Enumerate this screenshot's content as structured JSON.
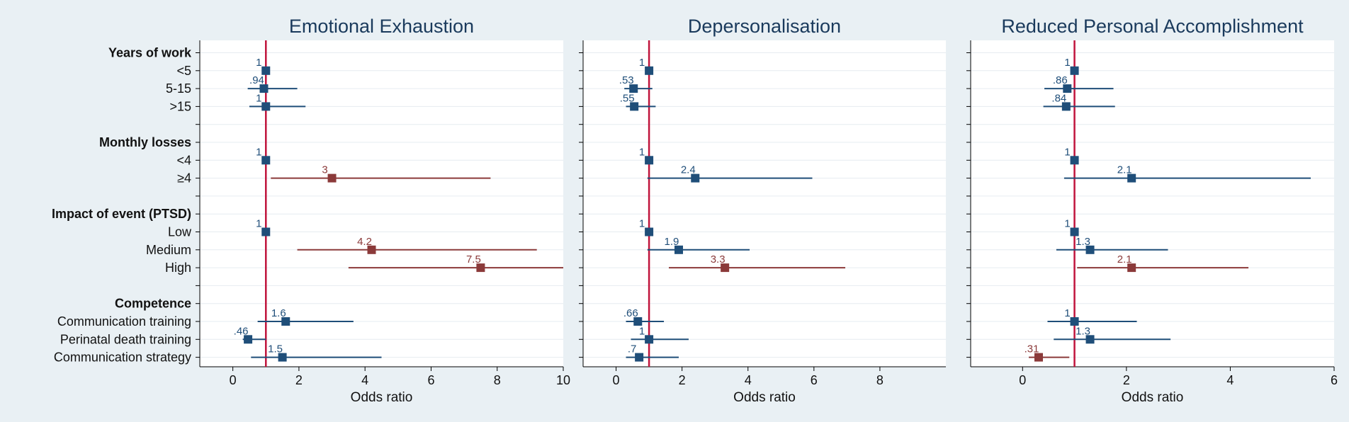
{
  "figure": {
    "background": "#e9f0f4",
    "plot_background": "#ffffff",
    "row_labels": [
      {
        "text": "Years of work",
        "header": true
      },
      {
        "text": "<5",
        "header": false
      },
      {
        "text": "5-15",
        "header": false
      },
      {
        "text": ">15",
        "header": false
      },
      {
        "text": "",
        "header": false
      },
      {
        "text": "Monthly losses",
        "header": true
      },
      {
        "text": "<4",
        "header": false
      },
      {
        "text": "≥4",
        "header": false
      },
      {
        "text": "",
        "header": false
      },
      {
        "text": "Impact of event (PTSD)",
        "header": true
      },
      {
        "text": "Low",
        "header": false
      },
      {
        "text": "Medium",
        "header": false
      },
      {
        "text": "High",
        "header": false
      },
      {
        "text": "",
        "header": false
      },
      {
        "text": "Competence",
        "header": true
      },
      {
        "text": "Communication training",
        "header": false
      },
      {
        "text": "Perinatal death training",
        "header": false
      },
      {
        "text": "Communication strategy",
        "header": false
      }
    ],
    "colors": {
      "non_significant": "#1f4e79",
      "significant": "#8b3a3a",
      "reference_line": "#c0143c",
      "title": "#1a3a5c",
      "grid": "#e6ecf0"
    }
  },
  "chart_data": [
    {
      "type": "forest",
      "title": "Emotional Exhaustion",
      "xlabel": "Odds ratio",
      "xlim": [
        -1,
        10
      ],
      "xticks": [
        0,
        2,
        4,
        6,
        8,
        10
      ],
      "reference": 1,
      "points": [
        {
          "row": 1,
          "est": 1,
          "lo": 1,
          "hi": 1,
          "label": "1",
          "sig": false
        },
        {
          "row": 2,
          "est": 0.94,
          "lo": 0.45,
          "hi": 1.95,
          "label": ".94",
          "sig": false
        },
        {
          "row": 3,
          "est": 1,
          "lo": 0.5,
          "hi": 2.2,
          "label": "1",
          "sig": false
        },
        {
          "row": 6,
          "est": 1,
          "lo": 1,
          "hi": 1,
          "label": "1",
          "sig": false
        },
        {
          "row": 7,
          "est": 3,
          "lo": 1.15,
          "hi": 7.8,
          "label": "3",
          "sig": true
        },
        {
          "row": 10,
          "est": 1,
          "lo": 1,
          "hi": 1,
          "label": "1",
          "sig": false
        },
        {
          "row": 11,
          "est": 4.2,
          "lo": 1.95,
          "hi": 9.2,
          "label": "4.2",
          "sig": true
        },
        {
          "row": 12,
          "est": 7.5,
          "lo": 3.5,
          "hi": 10,
          "label": "7.5",
          "sig": true
        },
        {
          "row": 15,
          "est": 1.6,
          "lo": 0.75,
          "hi": 3.65,
          "label": "1.6",
          "sig": false
        },
        {
          "row": 16,
          "est": 0.46,
          "lo": 0.3,
          "hi": 1.0,
          "label": ".46",
          "sig": false
        },
        {
          "row": 17,
          "est": 1.5,
          "lo": 0.55,
          "hi": 4.5,
          "label": "1.5",
          "sig": false
        }
      ]
    },
    {
      "type": "forest",
      "title": "Depersonalisation",
      "xlabel": "Odds ratio",
      "xlim": [
        -1,
        10
      ],
      "xticks": [
        0,
        2,
        4,
        6,
        8
      ],
      "reference": 1,
      "points": [
        {
          "row": 1,
          "est": 1,
          "lo": 1,
          "hi": 1,
          "label": "1",
          "sig": false
        },
        {
          "row": 2,
          "est": 0.53,
          "lo": 0.25,
          "hi": 1.1,
          "label": ".53",
          "sig": false
        },
        {
          "row": 3,
          "est": 0.55,
          "lo": 0.3,
          "hi": 1.2,
          "label": ".55",
          "sig": false
        },
        {
          "row": 6,
          "est": 1,
          "lo": 1,
          "hi": 1,
          "label": "1",
          "sig": false
        },
        {
          "row": 7,
          "est": 2.4,
          "lo": 0.95,
          "hi": 5.95,
          "label": "2.4",
          "sig": false
        },
        {
          "row": 10,
          "est": 1,
          "lo": 1,
          "hi": 1,
          "label": "1",
          "sig": false
        },
        {
          "row": 11,
          "est": 1.9,
          "lo": 0.95,
          "hi": 4.05,
          "label": "1.9",
          "sig": false
        },
        {
          "row": 12,
          "est": 3.3,
          "lo": 1.6,
          "hi": 6.95,
          "label": "3.3",
          "sig": true
        },
        {
          "row": 15,
          "est": 0.66,
          "lo": 0.3,
          "hi": 1.45,
          "label": ".66",
          "sig": false
        },
        {
          "row": 16,
          "est": 1,
          "lo": 0.45,
          "hi": 2.2,
          "label": "1",
          "sig": false
        },
        {
          "row": 17,
          "est": 0.7,
          "lo": 0.3,
          "hi": 1.9,
          "label": ".7",
          "sig": false
        }
      ]
    },
    {
      "type": "forest",
      "title": "Reduced Personal Accomplishment",
      "xlabel": "Odds ratio",
      "xlim": [
        -1,
        6
      ],
      "xticks": [
        0,
        2,
        4,
        6
      ],
      "reference": 1,
      "points": [
        {
          "row": 1,
          "est": 1,
          "lo": 1,
          "hi": 1,
          "label": "1",
          "sig": false
        },
        {
          "row": 2,
          "est": 0.86,
          "lo": 0.42,
          "hi": 1.75,
          "label": ".86",
          "sig": false
        },
        {
          "row": 3,
          "est": 0.84,
          "lo": 0.4,
          "hi": 1.78,
          "label": ".84",
          "sig": false
        },
        {
          "row": 6,
          "est": 1,
          "lo": 1,
          "hi": 1,
          "label": "1",
          "sig": false
        },
        {
          "row": 7,
          "est": 2.1,
          "lo": 0.8,
          "hi": 5.55,
          "label": "2.1",
          "sig": false
        },
        {
          "row": 10,
          "est": 1,
          "lo": 1,
          "hi": 1,
          "label": "1",
          "sig": false
        },
        {
          "row": 11,
          "est": 1.3,
          "lo": 0.65,
          "hi": 2.8,
          "label": "1.3",
          "sig": false
        },
        {
          "row": 12,
          "est": 2.1,
          "lo": 1.05,
          "hi": 4.35,
          "label": "2.1",
          "sig": true
        },
        {
          "row": 15,
          "est": 1,
          "lo": 0.48,
          "hi": 2.2,
          "label": "1",
          "sig": false
        },
        {
          "row": 16,
          "est": 1.3,
          "lo": 0.6,
          "hi": 2.85,
          "label": "1.3",
          "sig": false
        },
        {
          "row": 17,
          "est": 0.31,
          "lo": 0.12,
          "hi": 0.9,
          "label": ".31",
          "sig": true
        }
      ]
    }
  ]
}
